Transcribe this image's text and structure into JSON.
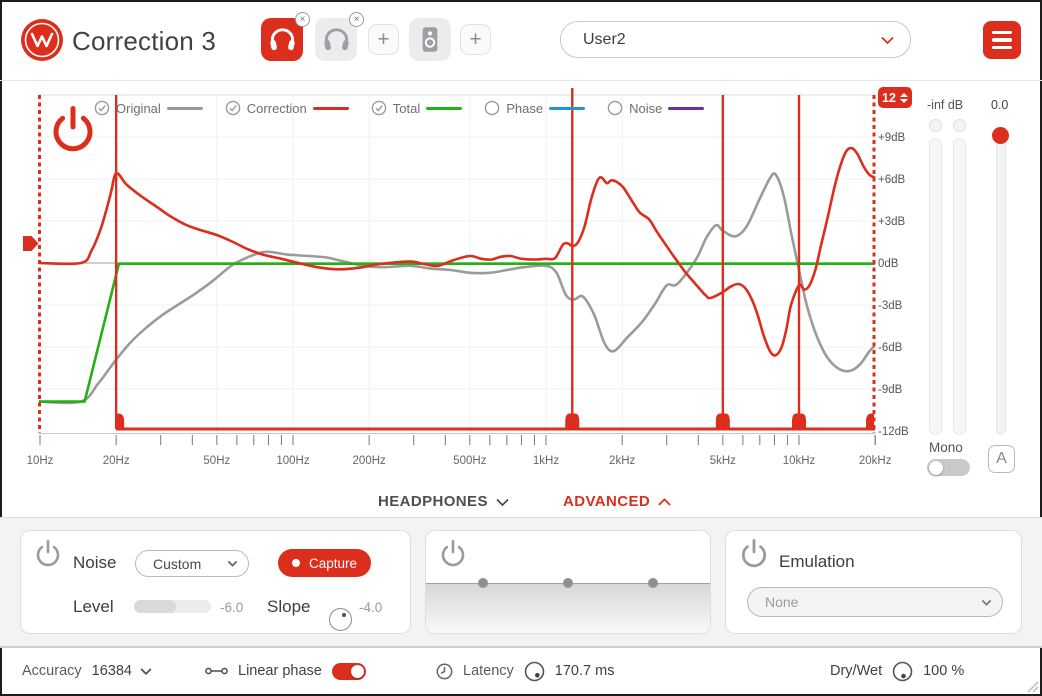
{
  "header": {
    "title": "Correction 3",
    "preset_dropdown": "User2",
    "add_slot_label": "+",
    "close_badge_label": "×",
    "slots": [
      {
        "type": "headphones",
        "active": true
      },
      {
        "type": "headphones",
        "active": false
      },
      {
        "type": "add"
      },
      {
        "type": "speaker",
        "active": false
      },
      {
        "type": "add"
      }
    ]
  },
  "graph": {
    "range_value": "12",
    "legend": [
      {
        "label": "Original",
        "color": "#9b9b9b",
        "checked": true
      },
      {
        "label": "Correction",
        "color": "#dc2e1d",
        "checked": true
      },
      {
        "label": "Total",
        "color": "#22b116",
        "checked": true
      },
      {
        "label": "Phase",
        "color": "#1e95d4",
        "checked": false
      },
      {
        "label": "Noise",
        "color": "#6b2fa0",
        "checked": false
      }
    ]
  },
  "chart_data": {
    "type": "line",
    "title": "",
    "x_axis": {
      "scale": "log",
      "unit": "Hz",
      "min": 10,
      "max": 20000
    },
    "y_axis": {
      "unit": "dB",
      "min": -12,
      "max": 12,
      "tick_step": 3
    },
    "x_ticks": [
      {
        "hz": 10,
        "label": "10Hz"
      },
      {
        "hz": 20,
        "label": "20Hz"
      },
      {
        "hz": 50,
        "label": "50Hz"
      },
      {
        "hz": 100,
        "label": "100Hz"
      },
      {
        "hz": 200,
        "label": "200Hz"
      },
      {
        "hz": 500,
        "label": "500Hz"
      },
      {
        "hz": 1000,
        "label": "1kHz"
      },
      {
        "hz": 2000,
        "label": "2kHz"
      },
      {
        "hz": 5000,
        "label": "5kHz"
      },
      {
        "hz": 10000,
        "label": "10kHz"
      },
      {
        "hz": 20000,
        "label": "20kHz"
      }
    ],
    "y_ticks": [
      {
        "db": 9,
        "label": "+9dB"
      },
      {
        "db": 6,
        "label": "+6dB"
      },
      {
        "db": 3,
        "label": "+3dB"
      },
      {
        "db": 0,
        "label": "0dB"
      },
      {
        "db": -3,
        "label": "-3dB"
      },
      {
        "db": -6,
        "label": "-6dB"
      },
      {
        "db": -9,
        "label": "-9dB"
      },
      {
        "db": -12,
        "label": "-12dB"
      }
    ],
    "split_markers_hz": [
      20,
      1270,
      5000,
      10000
    ],
    "boundary_markers_hz": [
      10,
      20000
    ],
    "correction_limit_db": -11.9,
    "series": [
      {
        "name": "Original",
        "color": "#9b9b9b",
        "visible": true,
        "smooth": true,
        "points": [
          [
            9.9,
            -9.9
          ],
          [
            14.5,
            -9.9
          ],
          [
            17,
            -8.6
          ],
          [
            20,
            -6.9
          ],
          [
            23,
            -5.6
          ],
          [
            26,
            -4.7
          ],
          [
            30,
            -3.8
          ],
          [
            35,
            -3.0
          ],
          [
            41,
            -2.2
          ],
          [
            48,
            -1.3
          ],
          [
            57,
            -0.2
          ],
          [
            66,
            0.4
          ],
          [
            78,
            0.8
          ],
          [
            95,
            0.6
          ],
          [
            115,
            0.5
          ],
          [
            135,
            0.4
          ],
          [
            160,
            0.1
          ],
          [
            190,
            -0.2
          ],
          [
            230,
            -0.3
          ],
          [
            290,
            -0.2
          ],
          [
            350,
            -0.4
          ],
          [
            420,
            -0.5
          ],
          [
            500,
            -0.7
          ],
          [
            600,
            -0.7
          ],
          [
            700,
            -0.5
          ],
          [
            820,
            -0.3
          ],
          [
            1000,
            -0.2
          ],
          [
            1100,
            -0.7
          ],
          [
            1200,
            -2.3
          ],
          [
            1290,
            -2.6
          ],
          [
            1400,
            -2.4
          ],
          [
            1550,
            -3.7
          ],
          [
            1700,
            -5.7
          ],
          [
            1850,
            -6.3
          ],
          [
            2100,
            -5.3
          ],
          [
            2400,
            -4.2
          ],
          [
            2700,
            -2.9
          ],
          [
            3000,
            -1.6
          ],
          [
            3300,
            -1.5
          ],
          [
            3900,
            0.2
          ],
          [
            4300,
            1.8
          ],
          [
            4700,
            2.7
          ],
          [
            5000,
            2.3
          ],
          [
            5600,
            1.9
          ],
          [
            6200,
            2.6
          ],
          [
            7000,
            4.6
          ],
          [
            7700,
            6.1
          ],
          [
            8100,
            6.3
          ],
          [
            8700,
            4.8
          ],
          [
            9300,
            2.2
          ],
          [
            10000,
            -0.5
          ],
          [
            10800,
            -3.2
          ],
          [
            11800,
            -5.3
          ],
          [
            13000,
            -6.8
          ],
          [
            14500,
            -7.6
          ],
          [
            16000,
            -7.7
          ],
          [
            17500,
            -7.2
          ],
          [
            19000,
            -6.3
          ],
          [
            20000,
            -5.9
          ]
        ]
      },
      {
        "name": "Total",
        "color": "#22b116",
        "visible": true,
        "smooth": false,
        "points": [
          [
            9.9,
            -9.9
          ],
          [
            15,
            -9.9
          ],
          [
            20.5,
            -0.05
          ],
          [
            20000,
            -0.05
          ]
        ]
      },
      {
        "name": "Correction",
        "color": "#dc2e1d",
        "visible": true,
        "smooth": true,
        "points": [
          [
            9.9,
            0
          ],
          [
            14.5,
            0
          ],
          [
            16,
            0.9
          ],
          [
            17.5,
            2.6
          ],
          [
            19,
            4.9
          ],
          [
            20,
            6.4
          ],
          [
            22,
            5.6
          ],
          [
            25,
            4.8
          ],
          [
            29,
            4.0
          ],
          [
            33,
            3.3
          ],
          [
            38,
            2.7
          ],
          [
            44,
            2.3
          ],
          [
            50,
            2.0
          ],
          [
            58,
            1.5
          ],
          [
            66,
            1.0
          ],
          [
            76,
            0.6
          ],
          [
            90,
            0.3
          ],
          [
            105,
            0.0
          ],
          [
            125,
            -0.3
          ],
          [
            150,
            -0.45
          ],
          [
            180,
            -0.35
          ],
          [
            215,
            -0.1
          ],
          [
            255,
            0.05
          ],
          [
            295,
            0.1
          ],
          [
            335,
            -0.1
          ],
          [
            375,
            -0.2
          ],
          [
            430,
            0.2
          ],
          [
            500,
            0.5
          ],
          [
            555,
            0.3
          ],
          [
            610,
            0.25
          ],
          [
            665,
            0.45
          ],
          [
            725,
            0.5
          ],
          [
            800,
            0.3
          ],
          [
            905,
            0.25
          ],
          [
            1000,
            0.3
          ],
          [
            1085,
            0.35
          ],
          [
            1165,
            1.3
          ],
          [
            1220,
            1.4
          ],
          [
            1275,
            1.2
          ],
          [
            1340,
            1.5
          ],
          [
            1420,
            2.6
          ],
          [
            1510,
            4.6
          ],
          [
            1600,
            5.9
          ],
          [
            1660,
            6.1
          ],
          [
            1740,
            5.7
          ],
          [
            1810,
            5.9
          ],
          [
            1900,
            5.8
          ],
          [
            2020,
            5.4
          ],
          [
            2210,
            4.3
          ],
          [
            2350,
            3.6
          ],
          [
            2560,
            3.1
          ],
          [
            2750,
            2.2
          ],
          [
            3000,
            1.2
          ],
          [
            3280,
            0.2
          ],
          [
            3570,
            -0.7
          ],
          [
            3900,
            -1.5
          ],
          [
            4270,
            -2.3
          ],
          [
            4470,
            -2.5
          ],
          [
            4980,
            -2.1
          ],
          [
            5350,
            -1.7
          ],
          [
            5760,
            -1.5
          ],
          [
            6130,
            -1.8
          ],
          [
            6510,
            -2.6
          ],
          [
            6860,
            -3.7
          ],
          [
            7260,
            -5.2
          ],
          [
            7680,
            -6.3
          ],
          [
            8060,
            -6.6
          ],
          [
            8500,
            -6.1
          ],
          [
            8900,
            -4.8
          ],
          [
            9300,
            -3.0
          ],
          [
            10000,
            -1.6
          ],
          [
            10500,
            -1.9
          ],
          [
            11000,
            -1.6
          ],
          [
            11600,
            -0.5
          ],
          [
            12200,
            1.2
          ],
          [
            13000,
            3.3
          ],
          [
            13800,
            5.4
          ],
          [
            14600,
            7.0
          ],
          [
            15400,
            8.0
          ],
          [
            16200,
            8.2
          ],
          [
            17000,
            7.8
          ],
          [
            18000,
            6.9
          ],
          [
            19000,
            6.3
          ],
          [
            20000,
            6.1
          ]
        ]
      },
      {
        "name": "Phase",
        "color": "#1e95d4",
        "visible": false,
        "smooth": true,
        "points": []
      },
      {
        "name": "Noise",
        "color": "#6b2fa0",
        "visible": false,
        "smooth": true,
        "points": []
      }
    ]
  },
  "meters": {
    "level_label": "-inf dB",
    "volume_value": "0.0",
    "mono_label": "Mono",
    "auto_button": "A"
  },
  "tabs": {
    "headphones": "HEADPHONES",
    "advanced": "ADVANCED"
  },
  "noise_panel": {
    "title": "Noise",
    "mode_dropdown": "Custom",
    "capture_button": "Capture",
    "level_label": "Level",
    "level_value": "-6.0",
    "level_fill_pct": 55,
    "slope_label": "Slope",
    "slope_value": "-4.0"
  },
  "eq_panel": {
    "node_positions_pct": [
      20,
      50,
      80
    ]
  },
  "emulation_panel": {
    "title": "Emulation",
    "selection_dropdown": "None"
  },
  "footer": {
    "accuracy_label": "Accuracy",
    "accuracy_value": "16384",
    "linear_phase_label": "Linear phase",
    "latency_label": "Latency",
    "latency_value": "170.7 ms",
    "drywet_label": "Dry/Wet",
    "drywet_value": "100 %"
  }
}
